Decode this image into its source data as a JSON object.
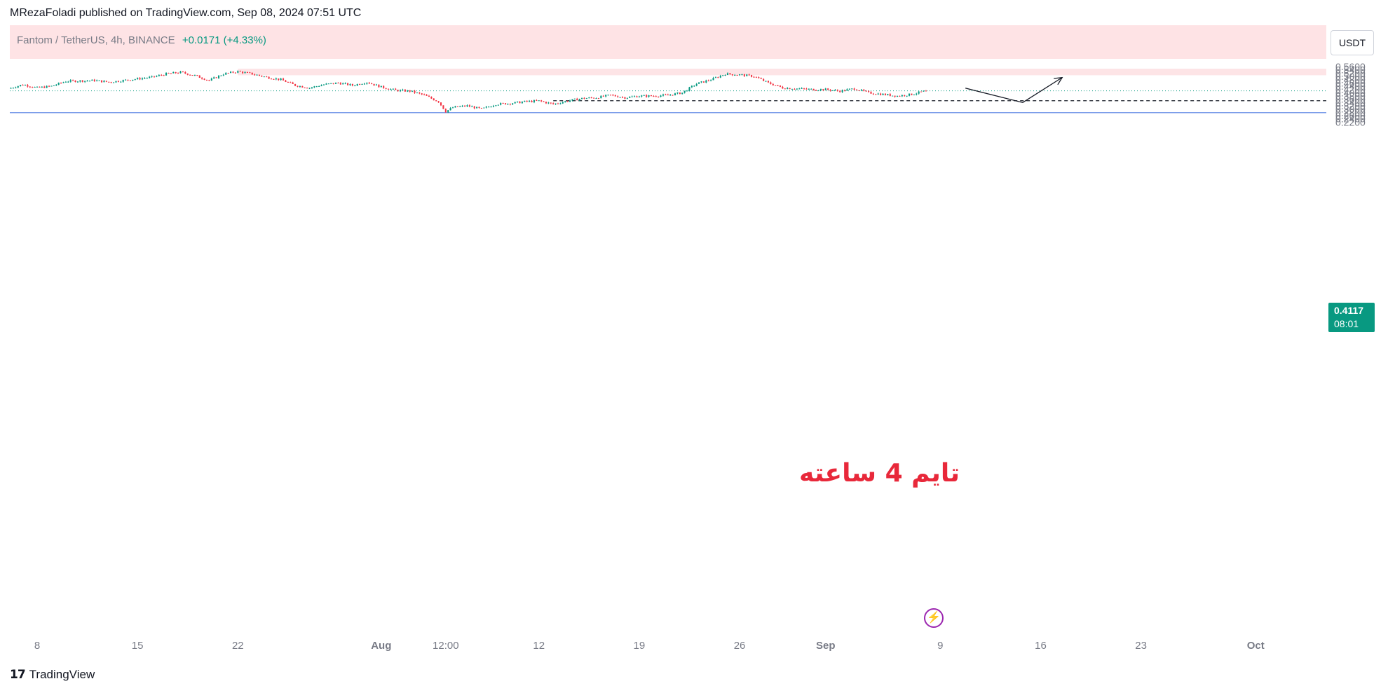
{
  "header": {
    "publisher": "MRezaFoladi published on TradingView.com, Sep 08, 2024 07:51 UTC"
  },
  "legend": {
    "symbol": "Fantom / TetherUS, 4h, BINANCE",
    "change": "+0.0171 (+4.33%)"
  },
  "currency_button": "USDT",
  "price_tag": {
    "price": "0.4117",
    "countdown": "08:01"
  },
  "annotation": "تایم 4 ساعته",
  "footer": {
    "brand": "TradingView"
  },
  "icons": [
    "tradingview-logo-icon",
    "flash-icon"
  ],
  "colors": {
    "up": "#089981",
    "down": "#f23645",
    "supply_zone": "#fde4e6",
    "support_line": "#7b9ce9",
    "annotation": "#e8283a",
    "flash": "#9c27b0"
  },
  "chart_data": {
    "type": "candlestick",
    "timeframe": "4h",
    "ylim": [
      0.21,
      0.57
    ],
    "y_ticks": [
      0.56,
      0.54,
      0.52,
      0.5,
      0.48,
      0.46,
      0.44,
      0.42,
      0.4,
      0.38,
      0.36,
      0.34,
      0.32,
      0.3,
      0.28,
      0.26,
      0.24,
      0.22
    ],
    "x_ticks": [
      {
        "label": "8",
        "date": "2024-07-08",
        "bold": false
      },
      {
        "label": "15",
        "date": "2024-07-15",
        "bold": false
      },
      {
        "label": "22",
        "date": "2024-07-22",
        "bold": false
      },
      {
        "label": "Aug",
        "date": "2024-08-01",
        "bold": true
      },
      {
        "label": "12:00",
        "date": "2024-08-05 12:00",
        "bold": false
      },
      {
        "label": "12",
        "date": "2024-08-12",
        "bold": false
      },
      {
        "label": "19",
        "date": "2024-08-19",
        "bold": false
      },
      {
        "label": "26",
        "date": "2024-08-26",
        "bold": false
      },
      {
        "label": "Sep",
        "date": "2024-09-01",
        "bold": true
      },
      {
        "label": "9",
        "date": "2024-09-09",
        "bold": false
      },
      {
        "label": "16",
        "date": "2024-09-16",
        "bold": false
      },
      {
        "label": "23",
        "date": "2024-09-23",
        "bold": false
      },
      {
        "label": "Oct",
        "date": "2024-10-01",
        "bold": true
      }
    ],
    "price_path": [
      {
        "date": "2024-07-06",
        "price": 0.425
      },
      {
        "date": "2024-07-07",
        "price": 0.45
      },
      {
        "date": "2024-07-08",
        "price": 0.43
      },
      {
        "date": "2024-07-09",
        "price": 0.44
      },
      {
        "date": "2024-07-10",
        "price": 0.47
      },
      {
        "date": "2024-07-12",
        "price": 0.475
      },
      {
        "date": "2024-07-13",
        "price": 0.465
      },
      {
        "date": "2024-07-15",
        "price": 0.485
      },
      {
        "date": "2024-07-16",
        "price": 0.495
      },
      {
        "date": "2024-07-17",
        "price": 0.515
      },
      {
        "date": "2024-07-18",
        "price": 0.525
      },
      {
        "date": "2024-07-19",
        "price": 0.505
      },
      {
        "date": "2024-07-20",
        "price": 0.475
      },
      {
        "date": "2024-07-21",
        "price": 0.515
      },
      {
        "date": "2024-07-22",
        "price": 0.53
      },
      {
        "date": "2024-07-23",
        "price": 0.515
      },
      {
        "date": "2024-07-24",
        "price": 0.495
      },
      {
        "date": "2024-07-25",
        "price": 0.48
      },
      {
        "date": "2024-07-26",
        "price": 0.445
      },
      {
        "date": "2024-07-27",
        "price": 0.43
      },
      {
        "date": "2024-07-28",
        "price": 0.45
      },
      {
        "date": "2024-07-29",
        "price": 0.46
      },
      {
        "date": "2024-07-30",
        "price": 0.445
      },
      {
        "date": "2024-07-31",
        "price": 0.465
      },
      {
        "date": "2024-08-01",
        "price": 0.435
      },
      {
        "date": "2024-08-02",
        "price": 0.415
      },
      {
        "date": "2024-08-03",
        "price": 0.41
      },
      {
        "date": "2024-08-04",
        "price": 0.385
      },
      {
        "date": "2024-08-05",
        "price": 0.345
      },
      {
        "date": "2024-08-05 12:00",
        "price": 0.285
      },
      {
        "date": "2024-08-06",
        "price": 0.31
      },
      {
        "date": "2024-08-07",
        "price": 0.32
      },
      {
        "date": "2024-08-08",
        "price": 0.3
      },
      {
        "date": "2024-08-09",
        "price": 0.33
      },
      {
        "date": "2024-08-10",
        "price": 0.335
      },
      {
        "date": "2024-08-11",
        "price": 0.345
      },
      {
        "date": "2024-08-12",
        "price": 0.35
      },
      {
        "date": "2024-08-13",
        "price": 0.33
      },
      {
        "date": "2024-08-14",
        "price": 0.35
      },
      {
        "date": "2024-08-15",
        "price": 0.365
      },
      {
        "date": "2024-08-16",
        "price": 0.37
      },
      {
        "date": "2024-08-17",
        "price": 0.385
      },
      {
        "date": "2024-08-18",
        "price": 0.37
      },
      {
        "date": "2024-08-19",
        "price": 0.38
      },
      {
        "date": "2024-08-20",
        "price": 0.38
      },
      {
        "date": "2024-08-21",
        "price": 0.385
      },
      {
        "date": "2024-08-22",
        "price": 0.4
      },
      {
        "date": "2024-08-23",
        "price": 0.455
      },
      {
        "date": "2024-08-24",
        "price": 0.48
      },
      {
        "date": "2024-08-25",
        "price": 0.515
      },
      {
        "date": "2024-08-26",
        "price": 0.51
      },
      {
        "date": "2024-08-27",
        "price": 0.5
      },
      {
        "date": "2024-08-28",
        "price": 0.46
      },
      {
        "date": "2024-08-29",
        "price": 0.43
      },
      {
        "date": "2024-08-30",
        "price": 0.425
      },
      {
        "date": "2024-08-31",
        "price": 0.42
      },
      {
        "date": "2024-09-01",
        "price": 0.42
      },
      {
        "date": "2024-09-02",
        "price": 0.41
      },
      {
        "date": "2024-09-03",
        "price": 0.425
      },
      {
        "date": "2024-09-04",
        "price": 0.4
      },
      {
        "date": "2024-09-05",
        "price": 0.39
      },
      {
        "date": "2024-09-06",
        "price": 0.38
      },
      {
        "date": "2024-09-07",
        "price": 0.39
      },
      {
        "date": "2024-09-08",
        "price": 0.4117
      }
    ],
    "supply_zone": {
      "from": "2024-07-22",
      "to": "2024-10-07",
      "low": 0.507,
      "high": 0.547
    },
    "support_line": {
      "price": 0.278
    },
    "dashed_level": {
      "from": "2024-08-13",
      "to": "2024-10-07",
      "price": 0.351
    },
    "current_price_line": {
      "price": 0.4117
    },
    "projection": [
      {
        "date": "2024-09-10 18:00",
        "price": 0.428
      },
      {
        "date": "2024-09-14 18:00",
        "price": 0.34
      },
      {
        "date": "2024-09-17 12:00",
        "price": 0.493
      }
    ]
  }
}
